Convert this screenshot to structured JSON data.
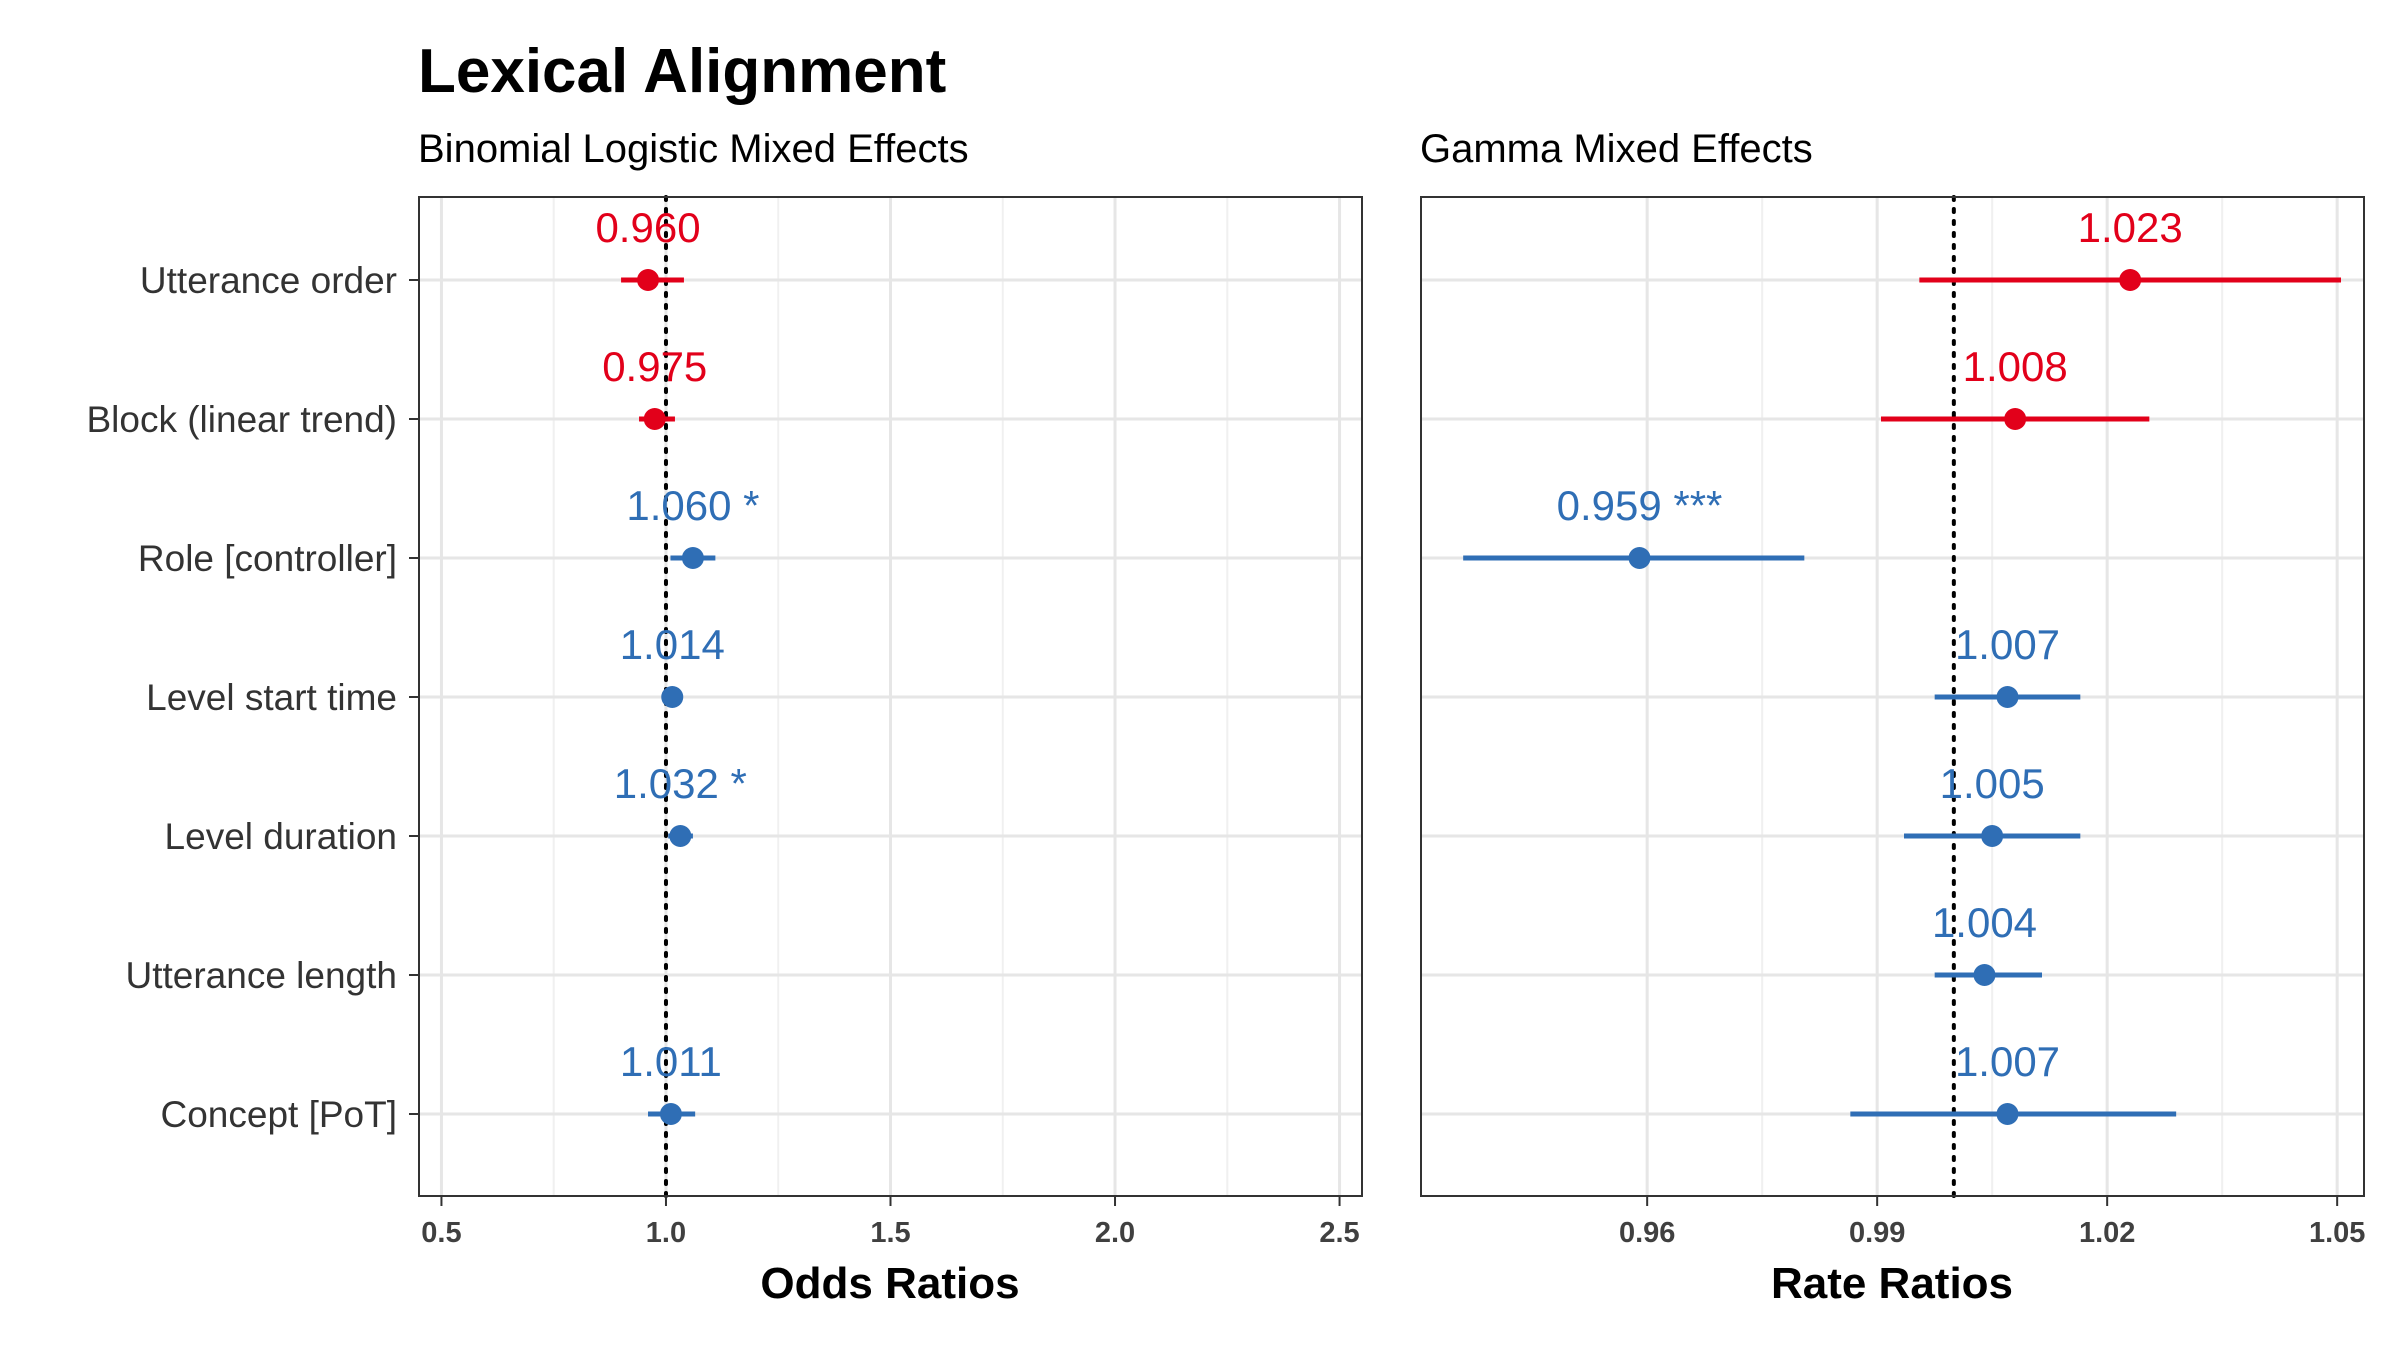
{
  "title": "Lexical Alignment",
  "colors": {
    "positive": "#e2001a",
    "negative": "#2f6eb5"
  },
  "chart_data": [
    {
      "type": "forest",
      "subtitle": "Binomial Logistic Mixed Effects",
      "xlabel": "Odds Ratios",
      "xlim": [
        0.45,
        2.55
      ],
      "xticks": [
        "0.5",
        "1.0",
        "1.5",
        "2.0",
        "2.5"
      ],
      "xtick_values": [
        0.5,
        1.0,
        1.5,
        2.0,
        2.5
      ],
      "ref_value": 1.0,
      "terms": [
        "Utterance order",
        "Block (linear trend)",
        "Role [controller]",
        "Level start time",
        "Level duration",
        "Utterance length",
        "Concept [PoT]"
      ],
      "estimates": [
        {
          "term": "Utterance order",
          "estimate": 0.96,
          "ci_low": 0.9,
          "ci_high": 1.04,
          "label": "0.960",
          "direction": "positive"
        },
        {
          "term": "Block (linear trend)",
          "estimate": 0.975,
          "ci_low": 0.94,
          "ci_high": 1.02,
          "label": "0.975",
          "direction": "positive"
        },
        {
          "term": "Role [controller]",
          "estimate": 1.06,
          "ci_low": 1.01,
          "ci_high": 1.11,
          "label": "1.060 *",
          "direction": "negative"
        },
        {
          "term": "Level start time",
          "estimate": 1.014,
          "ci_low": 0.99,
          "ci_high": 1.035,
          "label": "1.014",
          "direction": "negative"
        },
        {
          "term": "Level duration",
          "estimate": 1.032,
          "ci_low": 1.005,
          "ci_high": 1.06,
          "label": "1.032 *",
          "direction": "negative"
        },
        {
          "term": "Concept [PoT]",
          "estimate": 1.011,
          "ci_low": 0.96,
          "ci_high": 1.065,
          "label": "1.011",
          "direction": "negative"
        }
      ]
    },
    {
      "type": "forest",
      "subtitle": "Gamma Mixed Effects",
      "xlabel": "Rate Ratios",
      "xlim": [
        0.9305,
        1.0535
      ],
      "xticks": [
        "0.96",
        "0.99",
        "1.02",
        "1.05"
      ],
      "xtick_values": [
        0.96,
        0.99,
        1.02,
        1.05
      ],
      "ref_value": 1.0,
      "terms": [
        "Utterance order",
        "Block (linear trend)",
        "Role [controller]",
        "Level start time",
        "Level duration",
        "Utterance length",
        "Concept [PoT]"
      ],
      "estimates": [
        {
          "term": "Utterance order",
          "estimate": 1.023,
          "ci_low": 0.9955,
          "ci_high": 1.0505,
          "label": "1.023",
          "direction": "positive"
        },
        {
          "term": "Block (linear trend)",
          "estimate": 1.008,
          "ci_low": 0.9905,
          "ci_high": 1.0255,
          "label": "1.008",
          "direction": "positive"
        },
        {
          "term": "Role [controller]",
          "estimate": 0.959,
          "ci_low": 0.936,
          "ci_high": 0.9805,
          "label": "0.959 ***",
          "direction": "negative"
        },
        {
          "term": "Level start time",
          "estimate": 1.007,
          "ci_low": 0.9975,
          "ci_high": 1.0165,
          "label": "1.007",
          "direction": "negative"
        },
        {
          "term": "Level duration",
          "estimate": 1.005,
          "ci_low": 0.9935,
          "ci_high": 1.0165,
          "label": "1.005",
          "direction": "negative"
        },
        {
          "term": "Utterance length",
          "estimate": 1.004,
          "ci_low": 0.9975,
          "ci_high": 1.0115,
          "label": "1.004",
          "direction": "negative"
        },
        {
          "term": "Concept [PoT]",
          "estimate": 1.007,
          "ci_low": 0.9865,
          "ci_high": 1.029,
          "label": "1.007",
          "direction": "negative"
        }
      ]
    }
  ]
}
